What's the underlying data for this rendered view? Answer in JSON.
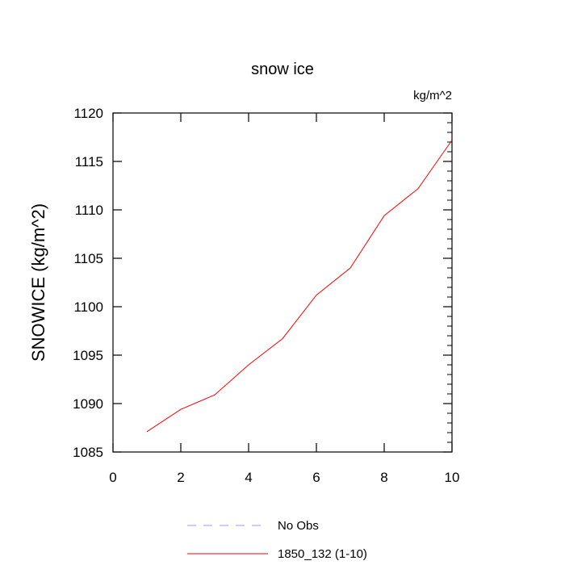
{
  "chart_data": {
    "type": "line",
    "title": "snow ice",
    "units_label": "kg/m^2",
    "xlabel": "",
    "ylabel": "SNOWICE  (kg/m^2)",
    "xlim": [
      0,
      10
    ],
    "ylim": [
      1085,
      1120
    ],
    "x_ticks": [
      0,
      2,
      4,
      6,
      8,
      10
    ],
    "y_ticks": [
      1085,
      1090,
      1095,
      1100,
      1105,
      1110,
      1115,
      1120
    ],
    "grid": false,
    "legend_position": "bottom",
    "series": [
      {
        "name": "No Obs",
        "color": "#9999ff",
        "dash": true,
        "x": [],
        "y": []
      },
      {
        "name": "1850_132 (1-10)",
        "color": "#ff0000",
        "dash": false,
        "x": [
          1,
          2,
          3,
          4,
          5,
          6,
          7,
          8,
          9,
          10
        ],
        "y": [
          1087.1,
          1089.4,
          1090.9,
          1094.0,
          1096.7,
          1101.2,
          1104.0,
          1109.4,
          1112.2,
          1117.2
        ]
      }
    ]
  }
}
